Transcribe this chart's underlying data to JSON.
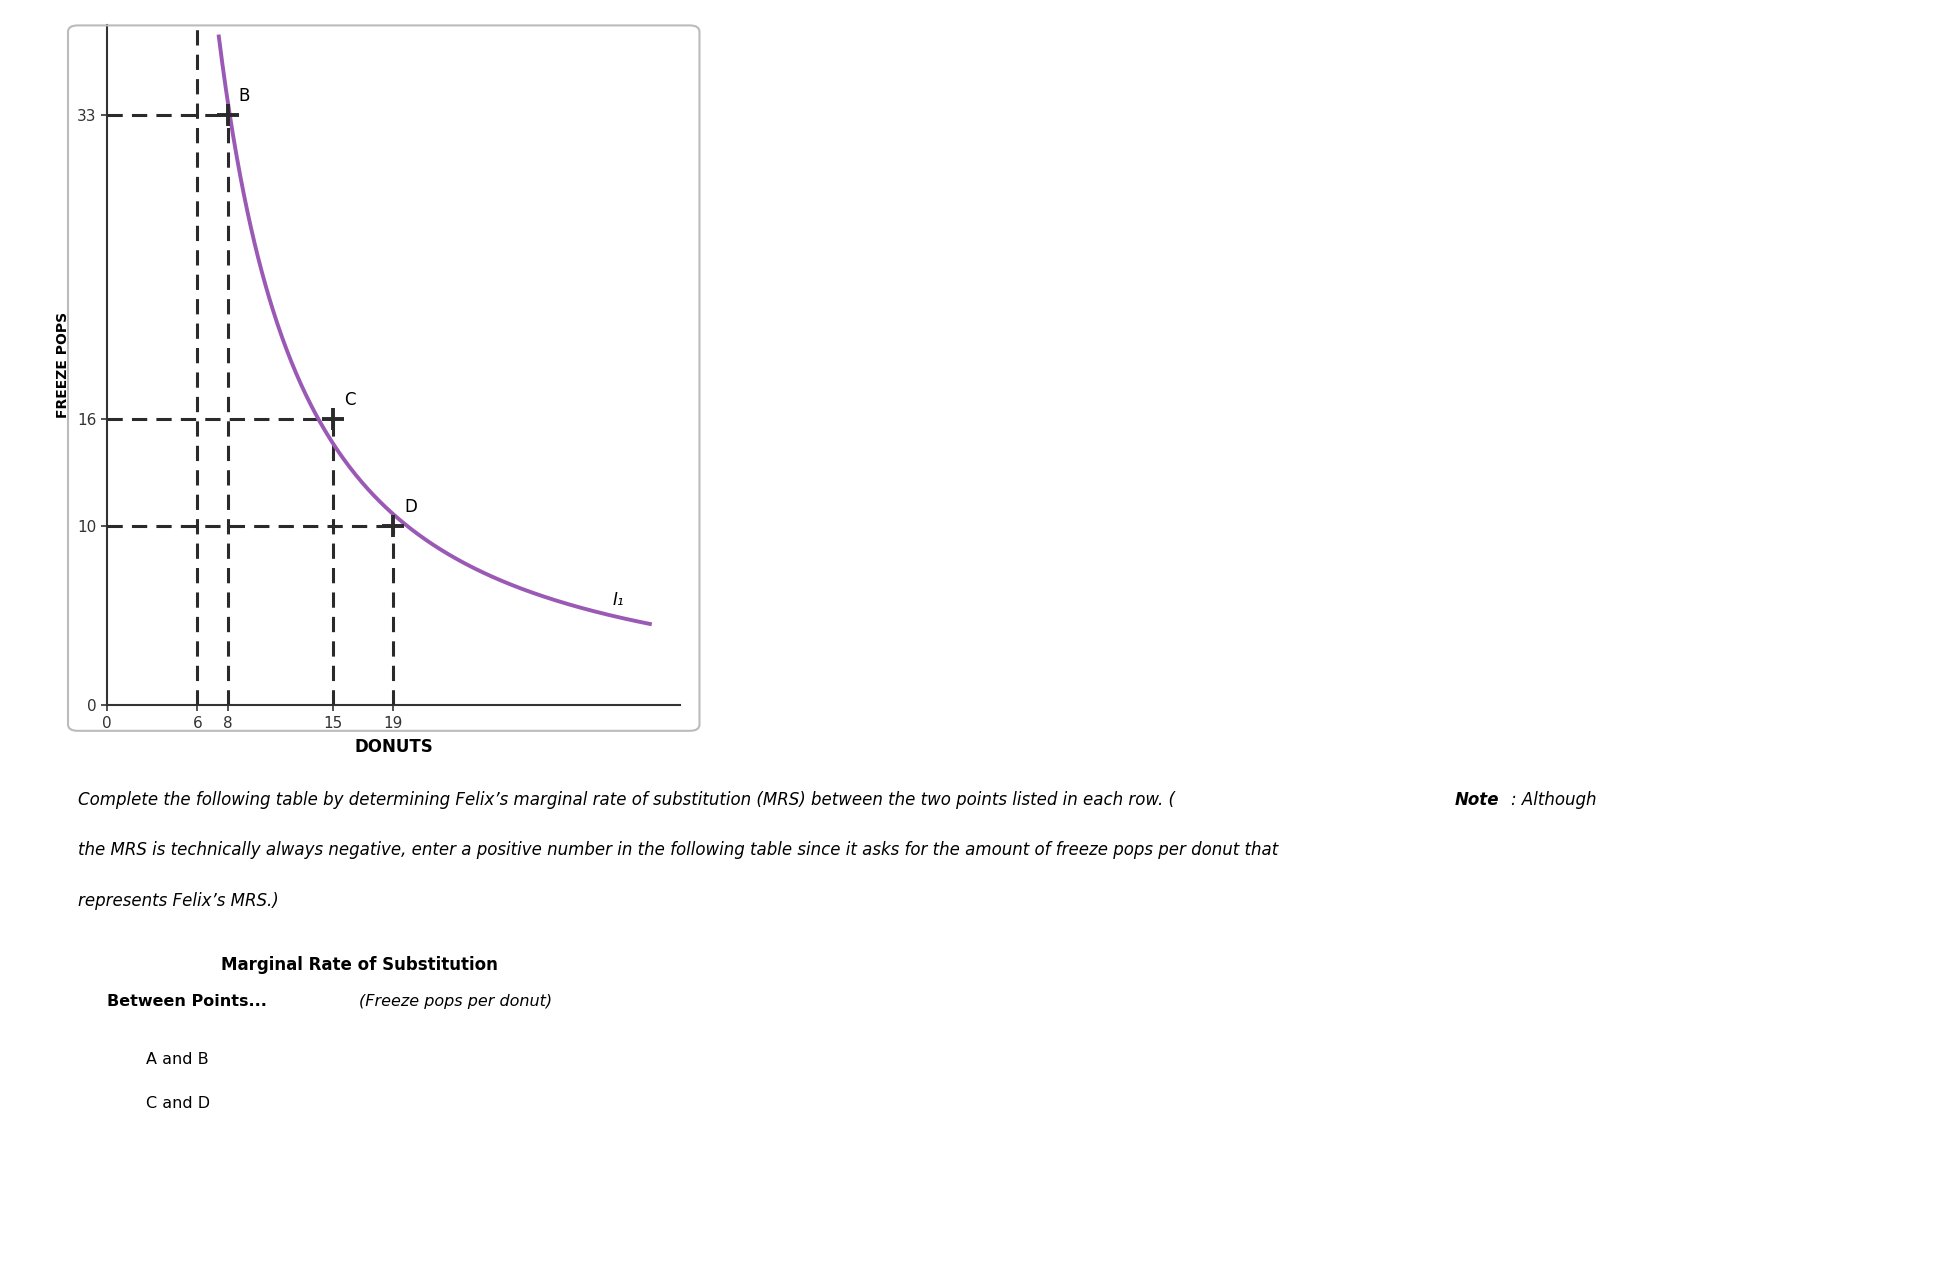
{
  "points": {
    "B": [
      8,
      33
    ],
    "C": [
      15,
      16
    ],
    "D": [
      19,
      10
    ]
  },
  "point_A": [
    6,
    0
  ],
  "curve_color": "#9b59b6",
  "dashed_color": "#2a2a2a",
  "xlabel": "DONUTS",
  "ylabel": "FREEZE POPS",
  "xticks": [
    0,
    6,
    8,
    15,
    19
  ],
  "yticks": [
    0,
    10,
    16,
    33
  ],
  "xlim": [
    0,
    38
  ],
  "ylim": [
    0,
    38
  ],
  "curve_label": "I₁",
  "background_color": "#ffffff",
  "separator_color": "#c8b99a",
  "para_line1": "Complete the following table by determining Felix’s marginal rate of substitution (MRS) between the two points listed in each row. (",
  "para_bold": "Note",
  "para_line1_rest": ": Although",
  "para_line2": "the MRS is technically always negative, enter a positive number in the following table since it asks for the amount of freeze pops per donut that",
  "para_line3": "represents Felix’s MRS.)",
  "table_title": "Marginal Rate of Substitution",
  "table_col1": "Between Points...",
  "table_col2": "(Freeze pops per donut)",
  "table_rows": [
    "A and B",
    "C and D"
  ],
  "chart_box_color": "#cccccc",
  "chart_xlim_display": 35,
  "curve_x_start": 4.5,
  "curve_x_end": 36,
  "power_A": 264.0,
  "power_n": -1.65
}
